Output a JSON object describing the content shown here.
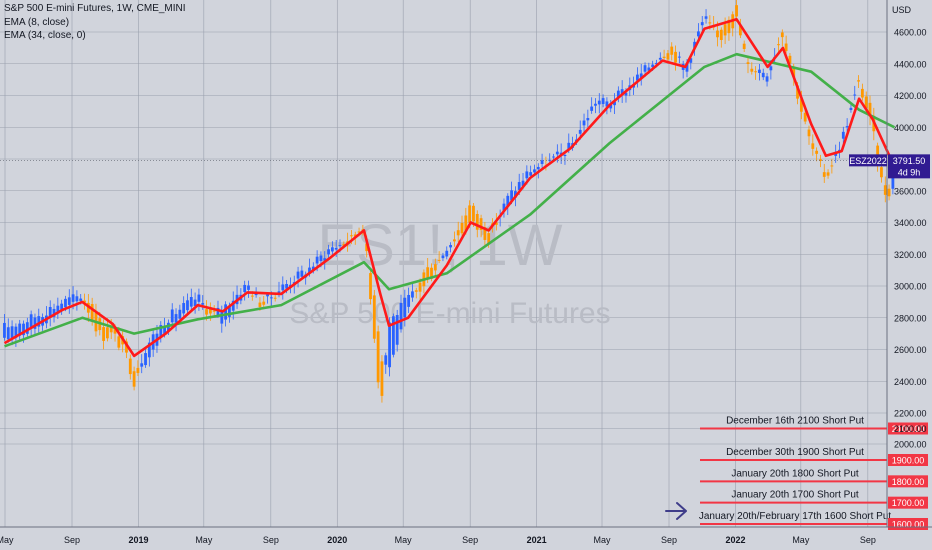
{
  "header": {
    "symbol_line": "S&P 500 E-mini Futures, 1W, CME_MINI",
    "ema_fast_label": "EMA (8, close)",
    "ema_slow_label": "EMA (34, close, 0)"
  },
  "watermark": {
    "ticker": "ES1!, 1W",
    "name": "S&P 500 E-mini Futures"
  },
  "colors": {
    "background": "#d1d4dc",
    "grid": "#9aa0ad",
    "up_candle": "#2962ff",
    "down_candle": "#ff9800",
    "ema_fast": "#ff1a1a",
    "ema_slow": "#43b049",
    "level_line": "#f23645",
    "price_tag": "#311b92"
  },
  "chart_data": {
    "type": "line",
    "title": "S&P 500 E-mini Futures, 1W, CME_MINI",
    "y_axis_unit": "USD",
    "ylim": [
      2150,
      4780
    ],
    "y_ticks": [
      2000,
      2100,
      2200,
      2400,
      2600,
      2800,
      3000,
      3200,
      3400,
      3600,
      3800,
      4000,
      4200,
      4400,
      4600
    ],
    "x_labels": [
      "May",
      "Sep",
      "2019",
      "May",
      "Sep",
      "2020",
      "May",
      "Sep",
      "2021",
      "May",
      "Sep",
      "2022",
      "May",
      "Sep"
    ],
    "grid": true,
    "current_price": {
      "symbol": "ESZ2022",
      "price": "3791.50",
      "countdown": "4d 9h"
    },
    "candles_anchor": [
      [
        "2018-04-30",
        2660,
        2740
      ],
      [
        "2018-06-15",
        2710,
        2790
      ],
      [
        "2018-08-15",
        2850,
        2900
      ],
      [
        "2018-09-20",
        2920,
        2940
      ],
      [
        "2018-10-10",
        2890,
        2780
      ],
      [
        "2018-10-25",
        2760,
        2680
      ],
      [
        "2018-11-15",
        2740,
        2700
      ],
      [
        "2018-12-10",
        2640,
        2560
      ],
      [
        "2018-12-24",
        2480,
        2400
      ],
      [
        "2019-01-15",
        2520,
        2620
      ],
      [
        "2019-02-20",
        2720,
        2790
      ],
      [
        "2019-04-20",
        2890,
        2930
      ],
      [
        "2019-05-15",
        2860,
        2810
      ],
      [
        "2019-06-05",
        2760,
        2860
      ],
      [
        "2019-07-20",
        2980,
        3010
      ],
      [
        "2019-08-15",
        2900,
        2880
      ],
      [
        "2019-09-20",
        2960,
        2990
      ],
      [
        "2019-11-10",
        3080,
        3110
      ],
      [
        "2019-12-20",
        3210,
        3240
      ],
      [
        "2020-01-25",
        3300,
        3280
      ],
      [
        "2020-02-19",
        3380,
        3390
      ],
      [
        "2020-03-01",
        3100,
        2950
      ],
      [
        "2020-03-12",
        2900,
        2600
      ],
      [
        "2020-03-20",
        2550,
        2230
      ],
      [
        "2020-04-05",
        2480,
        2770
      ],
      [
        "2020-05-10",
        2850,
        2920
      ],
      [
        "2020-06-10",
        3100,
        3000
      ],
      [
        "2020-07-20",
        3200,
        3250
      ],
      [
        "2020-09-02",
        3520,
        3400
      ],
      [
        "2020-10-05",
        3350,
        3300
      ],
      [
        "2020-11-10",
        3500,
        3560
      ],
      [
        "2020-12-20",
        3700,
        3730
      ],
      [
        "2021-01-30",
        3800,
        3790
      ],
      [
        "2021-03-05",
        3850,
        3880
      ],
      [
        "2021-04-20",
        4150,
        4170
      ],
      [
        "2021-05-15",
        4120,
        4150
      ],
      [
        "2021-06-20",
        4230,
        4260
      ],
      [
        "2021-08-20",
        4450,
        4470
      ],
      [
        "2021-09-10",
        4520,
        4450
      ],
      [
        "2021-10-01",
        4320,
        4380
      ],
      [
        "2021-11-05",
        4680,
        4690
      ],
      [
        "2021-12-01",
        4600,
        4550
      ],
      [
        "2022-01-03",
        4760,
        4680
      ],
      [
        "2022-01-24",
        4400,
        4380
      ],
      [
        "2022-03-01",
        4300,
        4350
      ],
      [
        "2022-03-29",
        4620,
        4600
      ],
      [
        "2022-05-01",
        4200,
        4120
      ],
      [
        "2022-05-20",
        3920,
        3880
      ],
      [
        "2022-06-16",
        3700,
        3680
      ],
      [
        "2022-07-15",
        3880,
        3920
      ],
      [
        "2022-08-16",
        4300,
        4280
      ],
      [
        "2022-09-10",
        4100,
        3980
      ],
      [
        "2022-09-30",
        3650,
        3590
      ],
      [
        "2022-10-14",
        3620,
        3600
      ],
      [
        "2022-10-20",
        3600,
        3791.5
      ]
    ],
    "ema_fast_anchor": [
      [
        "2018-04-30",
        2640
      ],
      [
        "2018-08-15",
        2850
      ],
      [
        "2018-09-20",
        2900
      ],
      [
        "2018-11-15",
        2760
      ],
      [
        "2018-12-24",
        2560
      ],
      [
        "2019-02-20",
        2700
      ],
      [
        "2019-04-20",
        2880
      ],
      [
        "2019-06-05",
        2840
      ],
      [
        "2019-07-20",
        2960
      ],
      [
        "2019-09-20",
        2950
      ],
      [
        "2019-12-20",
        3180
      ],
      [
        "2020-02-19",
        3350
      ],
      [
        "2020-03-20",
        2950
      ],
      [
        "2020-04-05",
        2750
      ],
      [
        "2020-05-10",
        2800
      ],
      [
        "2020-07-20",
        3130
      ],
      [
        "2020-09-02",
        3400
      ],
      [
        "2020-10-05",
        3350
      ],
      [
        "2020-12-20",
        3680
      ],
      [
        "2021-03-05",
        3870
      ],
      [
        "2021-05-15",
        4140
      ],
      [
        "2021-08-20",
        4420
      ],
      [
        "2021-10-01",
        4380
      ],
      [
        "2021-11-05",
        4620
      ],
      [
        "2022-01-03",
        4680
      ],
      [
        "2022-03-01",
        4380
      ],
      [
        "2022-03-29",
        4500
      ],
      [
        "2022-05-20",
        4020
      ],
      [
        "2022-06-16",
        3820
      ],
      [
        "2022-07-15",
        3850
      ],
      [
        "2022-08-16",
        4180
      ],
      [
        "2022-09-10",
        4050
      ],
      [
        "2022-10-20",
        3750
      ]
    ],
    "ema_slow_anchor": [
      [
        "2018-04-30",
        2620
      ],
      [
        "2018-09-20",
        2800
      ],
      [
        "2018-12-24",
        2700
      ],
      [
        "2019-04-20",
        2790
      ],
      [
        "2019-09-20",
        2880
      ],
      [
        "2020-02-19",
        3150
      ],
      [
        "2020-04-05",
        2980
      ],
      [
        "2020-07-20",
        3080
      ],
      [
        "2020-12-20",
        3450
      ],
      [
        "2021-05-15",
        3900
      ],
      [
        "2021-11-05",
        4380
      ],
      [
        "2022-01-03",
        4460
      ],
      [
        "2022-05-20",
        4350
      ],
      [
        "2022-08-16",
        4110
      ],
      [
        "2022-10-20",
        4000
      ]
    ],
    "levels": [
      {
        "price": "2100.00",
        "label": "December 16th 2100 Short Put"
      },
      {
        "price": "1900.00",
        "label": "December 30th 1900 Short Put"
      },
      {
        "price": "1800.00",
        "label": "January 20th 1800 Short Put"
      },
      {
        "price": "1700.00",
        "label": "January 20th 1700 Short Put"
      },
      {
        "price": "1600.00",
        "label": "January 20th/February 17th 1600 Short Put"
      }
    ]
  }
}
